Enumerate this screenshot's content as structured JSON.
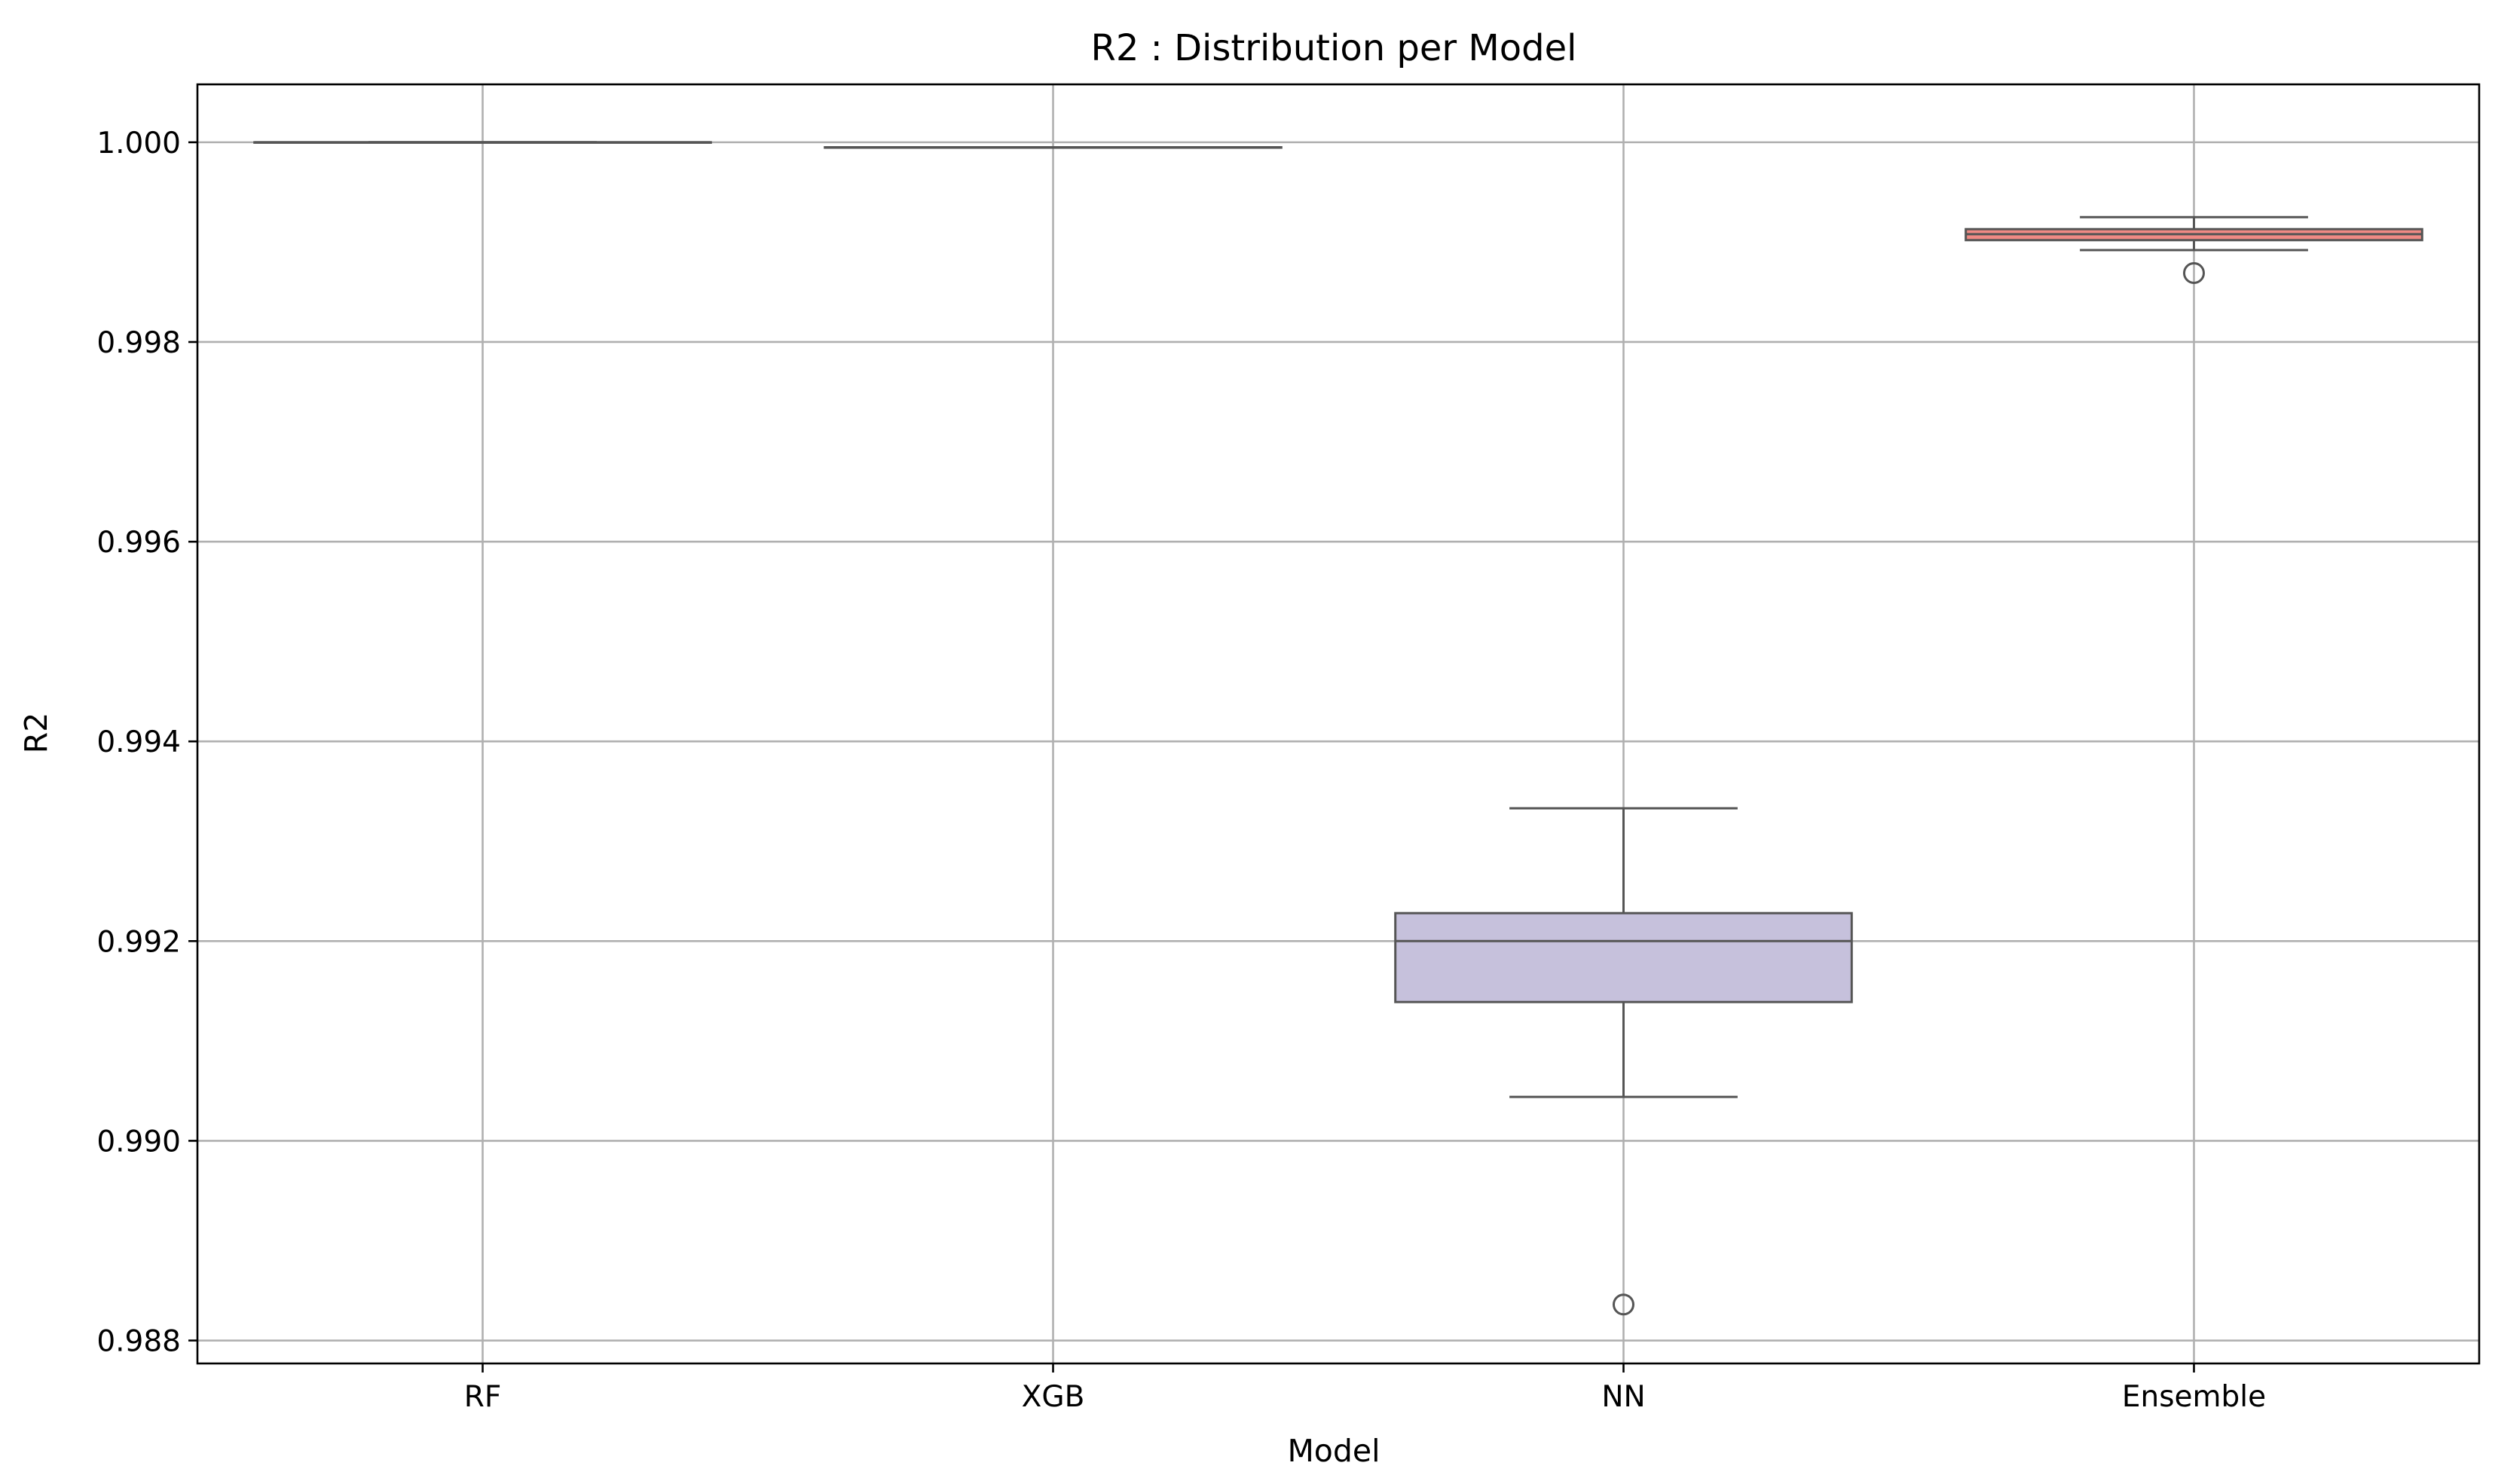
{
  "chart_data": {
    "type": "box",
    "title": "R2 : Distribution per Model",
    "xlabel": "Model",
    "ylabel": "R2",
    "ylim": [
      0.98777,
      1.00058
    ],
    "yticks": [
      0.988,
      0.99,
      0.992,
      0.994,
      0.996,
      0.998,
      1.0
    ],
    "ytick_labels": [
      "0.988",
      "0.990",
      "0.992",
      "0.994",
      "0.996",
      "0.998",
      "1.000"
    ],
    "grid": true,
    "categories": [
      "RF",
      "XGB",
      "NN",
      "Ensemble"
    ],
    "boxes": [
      {
        "name": "RF",
        "whisker_low": 1.0,
        "q1": 1.0,
        "median": 1.0,
        "q3": 1.0,
        "whisker_high": 1.0,
        "outliers": [],
        "color": "#8da0cb"
      },
      {
        "name": "XGB",
        "whisker_low": 0.99995,
        "q1": 0.99995,
        "median": 0.99995,
        "q3": 0.99995,
        "whisker_high": 0.99995,
        "outliers": [],
        "color": "#a6d854"
      },
      {
        "name": "NN",
        "whisker_low": 0.99044,
        "q1": 0.99139,
        "median": 0.992,
        "q3": 0.99228,
        "whisker_high": 0.99333,
        "outliers": [
          0.98836
        ],
        "color": "#c6c1dc"
      },
      {
        "name": "Ensemble",
        "whisker_low": 0.99892,
        "q1": 0.99902,
        "median": 0.99908,
        "q3": 0.99913,
        "whisker_high": 0.99925,
        "outliers": [
          0.99869
        ],
        "color": "#f08a84"
      }
    ]
  }
}
